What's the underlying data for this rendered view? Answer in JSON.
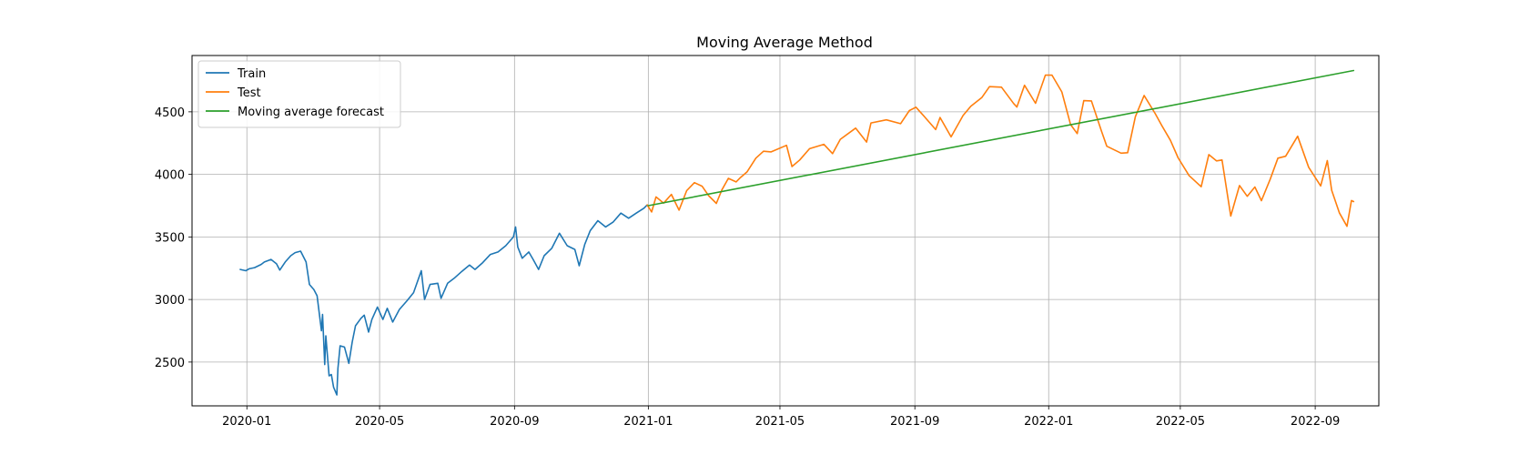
{
  "chart_data": {
    "type": "line",
    "title": "Moving Average Method",
    "xlabel": "",
    "ylabel": "",
    "xlim": [
      "2019-11-12",
      "2022-10-29"
    ],
    "ylim": [
      2150,
      4950
    ],
    "x_ticks": [
      "2020-01",
      "2020-05",
      "2020-09",
      "2021-01",
      "2021-05",
      "2021-09",
      "2022-01",
      "2022-05",
      "2022-09"
    ],
    "y_ticks": [
      2500,
      3000,
      3500,
      4000,
      4500
    ],
    "grid": true,
    "legend_position": "upper-left",
    "series": [
      {
        "name": "Train",
        "color": "#1f77b4",
        "points": [
          [
            "2019-12-26",
            3240
          ],
          [
            "2019-12-31",
            3230
          ],
          [
            "2020-01-03",
            3245
          ],
          [
            "2020-01-08",
            3255
          ],
          [
            "2020-01-14",
            3280
          ],
          [
            "2020-01-17",
            3300
          ],
          [
            "2020-01-23",
            3320
          ],
          [
            "2020-01-28",
            3285
          ],
          [
            "2020-01-31",
            3235
          ],
          [
            "2020-02-05",
            3300
          ],
          [
            "2020-02-10",
            3350
          ],
          [
            "2020-02-14",
            3375
          ],
          [
            "2020-02-19",
            3386
          ],
          [
            "2020-02-24",
            3300
          ],
          [
            "2020-02-27",
            3120
          ],
          [
            "2020-03-02",
            3080
          ],
          [
            "2020-03-05",
            3030
          ],
          [
            "2020-03-09",
            2750
          ],
          [
            "2020-03-10",
            2880
          ],
          [
            "2020-03-12",
            2480
          ],
          [
            "2020-03-13",
            2710
          ],
          [
            "2020-03-16",
            2390
          ],
          [
            "2020-03-18",
            2400
          ],
          [
            "2020-03-20",
            2300
          ],
          [
            "2020-03-23",
            2237
          ],
          [
            "2020-03-24",
            2450
          ],
          [
            "2020-03-26",
            2630
          ],
          [
            "2020-03-30",
            2620
          ],
          [
            "2020-04-03",
            2490
          ],
          [
            "2020-04-06",
            2660
          ],
          [
            "2020-04-09",
            2790
          ],
          [
            "2020-04-14",
            2850
          ],
          [
            "2020-04-17",
            2875
          ],
          [
            "2020-04-21",
            2740
          ],
          [
            "2020-04-24",
            2840
          ],
          [
            "2020-04-29",
            2940
          ],
          [
            "2020-05-04",
            2840
          ],
          [
            "2020-05-08",
            2930
          ],
          [
            "2020-05-13",
            2820
          ],
          [
            "2020-05-19",
            2920
          ],
          [
            "2020-05-26",
            2990
          ],
          [
            "2020-06-01",
            3055
          ],
          [
            "2020-06-08",
            3230
          ],
          [
            "2020-06-11",
            3000
          ],
          [
            "2020-06-16",
            3120
          ],
          [
            "2020-06-23",
            3130
          ],
          [
            "2020-06-26",
            3010
          ],
          [
            "2020-07-02",
            3130
          ],
          [
            "2020-07-08",
            3170
          ],
          [
            "2020-07-15",
            3225
          ],
          [
            "2020-07-22",
            3275
          ],
          [
            "2020-07-27",
            3240
          ],
          [
            "2020-08-03",
            3295
          ],
          [
            "2020-08-10",
            3360
          ],
          [
            "2020-08-17",
            3380
          ],
          [
            "2020-08-24",
            3430
          ],
          [
            "2020-08-31",
            3500
          ],
          [
            "2020-09-02",
            3580
          ],
          [
            "2020-09-04",
            3420
          ],
          [
            "2020-09-08",
            3330
          ],
          [
            "2020-09-14",
            3380
          ],
          [
            "2020-09-18",
            3320
          ],
          [
            "2020-09-23",
            3240
          ],
          [
            "2020-09-28",
            3350
          ],
          [
            "2020-10-05",
            3410
          ],
          [
            "2020-10-12",
            3530
          ],
          [
            "2020-10-19",
            3430
          ],
          [
            "2020-10-26",
            3400
          ],
          [
            "2020-10-30",
            3270
          ],
          [
            "2020-11-04",
            3440
          ],
          [
            "2020-11-09",
            3550
          ],
          [
            "2020-11-16",
            3630
          ],
          [
            "2020-11-23",
            3580
          ],
          [
            "2020-11-30",
            3620
          ],
          [
            "2020-12-07",
            3690
          ],
          [
            "2020-12-14",
            3650
          ],
          [
            "2020-12-21",
            3690
          ],
          [
            "2020-12-28",
            3730
          ],
          [
            "2020-12-31",
            3756
          ]
        ]
      },
      {
        "name": "Test",
        "color": "#ff7f0e",
        "points": [
          [
            "2020-12-31",
            3756
          ],
          [
            "2021-01-04",
            3700
          ],
          [
            "2021-01-08",
            3820
          ],
          [
            "2021-01-15",
            3770
          ],
          [
            "2021-01-22",
            3840
          ],
          [
            "2021-01-27",
            3750
          ],
          [
            "2021-01-29",
            3714
          ],
          [
            "2021-02-05",
            3870
          ],
          [
            "2021-02-12",
            3934
          ],
          [
            "2021-02-19",
            3906
          ],
          [
            "2021-02-25",
            3830
          ],
          [
            "2021-03-04",
            3768
          ],
          [
            "2021-03-09",
            3875
          ],
          [
            "2021-03-15",
            3968
          ],
          [
            "2021-03-22",
            3940
          ],
          [
            "2021-03-26",
            3975
          ],
          [
            "2021-04-01",
            4020
          ],
          [
            "2021-04-09",
            4130
          ],
          [
            "2021-04-16",
            4185
          ],
          [
            "2021-04-23",
            4180
          ],
          [
            "2021-05-07",
            4232
          ],
          [
            "2021-05-12",
            4063
          ],
          [
            "2021-05-19",
            4115
          ],
          [
            "2021-05-28",
            4205
          ],
          [
            "2021-06-10",
            4240
          ],
          [
            "2021-06-18",
            4166
          ],
          [
            "2021-06-25",
            4280
          ],
          [
            "2021-07-09",
            4370
          ],
          [
            "2021-07-19",
            4258
          ],
          [
            "2021-07-23",
            4411
          ],
          [
            "2021-08-06",
            4436
          ],
          [
            "2021-08-19",
            4405
          ],
          [
            "2021-08-27",
            4510
          ],
          [
            "2021-09-02",
            4537
          ],
          [
            "2021-09-10",
            4458
          ],
          [
            "2021-09-20",
            4358
          ],
          [
            "2021-09-24",
            4455
          ],
          [
            "2021-10-04",
            4300
          ],
          [
            "2021-10-15",
            4471
          ],
          [
            "2021-10-22",
            4545
          ],
          [
            "2021-11-01",
            4613
          ],
          [
            "2021-11-08",
            4701
          ],
          [
            "2021-11-19",
            4697
          ],
          [
            "2021-11-30",
            4567
          ],
          [
            "2021-12-03",
            4538
          ],
          [
            "2021-12-10",
            4712
          ],
          [
            "2021-12-20",
            4568
          ],
          [
            "2021-12-29",
            4793
          ],
          [
            "2022-01-04",
            4793
          ],
          [
            "2022-01-13",
            4659
          ],
          [
            "2022-01-21",
            4398
          ],
          [
            "2022-01-27",
            4326
          ],
          [
            "2022-02-02",
            4589
          ],
          [
            "2022-02-09",
            4587
          ],
          [
            "2022-02-18",
            4349
          ],
          [
            "2022-02-23",
            4225
          ],
          [
            "2022-03-08",
            4170
          ],
          [
            "2022-03-14",
            4173
          ],
          [
            "2022-03-21",
            4461
          ],
          [
            "2022-03-29",
            4631
          ],
          [
            "2022-04-08",
            4488
          ],
          [
            "2022-04-14",
            4392
          ],
          [
            "2022-04-22",
            4272
          ],
          [
            "2022-04-29",
            4132
          ],
          [
            "2022-05-09",
            3991
          ],
          [
            "2022-05-20",
            3901
          ],
          [
            "2022-05-27",
            4158
          ],
          [
            "2022-06-03",
            4108
          ],
          [
            "2022-06-08",
            4115
          ],
          [
            "2022-06-16",
            3667
          ],
          [
            "2022-06-24",
            3911
          ],
          [
            "2022-07-01",
            3825
          ],
          [
            "2022-07-08",
            3899
          ],
          [
            "2022-07-14",
            3790
          ],
          [
            "2022-07-22",
            3962
          ],
          [
            "2022-07-29",
            4130
          ],
          [
            "2022-08-05",
            4145
          ],
          [
            "2022-08-16",
            4305
          ],
          [
            "2022-08-26",
            4057
          ],
          [
            "2022-09-06",
            3908
          ],
          [
            "2022-09-12",
            4110
          ],
          [
            "2022-09-16",
            3873
          ],
          [
            "2022-09-23",
            3693
          ],
          [
            "2022-09-30",
            3585
          ],
          [
            "2022-10-04",
            3791
          ],
          [
            "2022-10-06",
            3783
          ]
        ]
      },
      {
        "name": "Moving average forecast",
        "color": "#2ca02c",
        "points": [
          [
            "2021-01-01",
            3750
          ],
          [
            "2022-10-06",
            4830
          ]
        ]
      }
    ]
  }
}
